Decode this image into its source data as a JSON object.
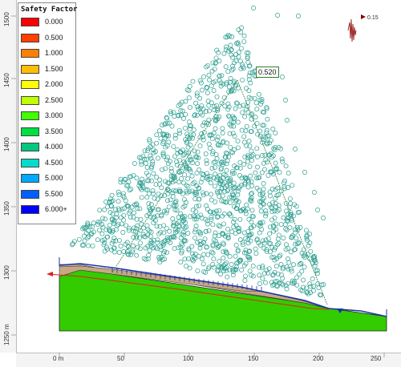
{
  "legend": {
    "title": "Safety Factor",
    "items": [
      {
        "label": "0.000",
        "color": "#ff0000"
      },
      {
        "label": "0.500",
        "color": "#ff4000"
      },
      {
        "label": "1.000",
        "color": "#ff8000"
      },
      {
        "label": "1.500",
        "color": "#ffbf00"
      },
      {
        "label": "2.000",
        "color": "#ffff00"
      },
      {
        "label": "2.500",
        "color": "#bfff00"
      },
      {
        "label": "3.000",
        "color": "#40ff00"
      },
      {
        "label": "3.500",
        "color": "#00e040"
      },
      {
        "label": "4.000",
        "color": "#00c880"
      },
      {
        "label": "4.500",
        "color": "#00ddcc"
      },
      {
        "label": "5.000",
        "color": "#00a8ff"
      },
      {
        "label": "5.500",
        "color": "#0060ff"
      },
      {
        "label": "6.000+",
        "color": "#0000ff"
      }
    ]
  },
  "callout": {
    "value": "0.520"
  },
  "seismic": {
    "label": "0.15"
  },
  "axes": {
    "x_ticks": [
      "0 m",
      "50",
      "100",
      "150",
      "200",
      "250"
    ],
    "y_ticks": [
      "1250 m",
      "1300",
      "1350",
      "1400",
      "1450",
      "1500"
    ]
  },
  "colors": {
    "slip_center": "#2a9d8f",
    "slide_material": "#c8a882",
    "ground": "#33cc00",
    "water_table": "#1a33aa"
  }
}
